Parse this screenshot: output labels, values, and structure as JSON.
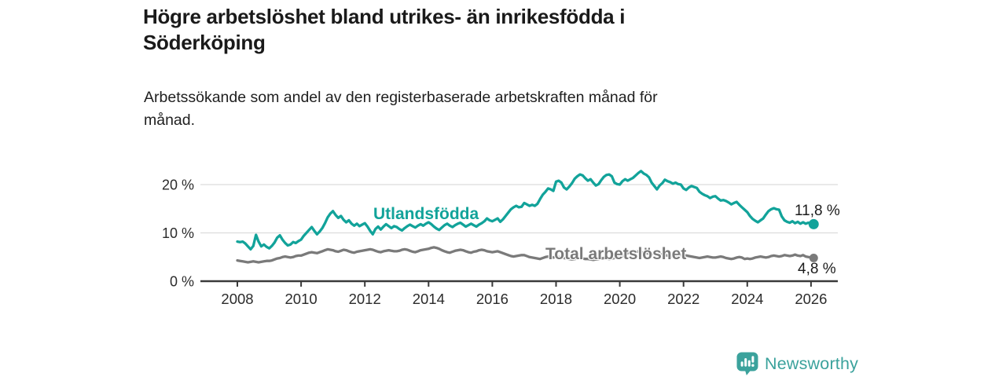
{
  "header": {
    "title_lines": [
      "Högre arbetslöshet bland utrikes- än inrikesfödda i",
      "Söderköping"
    ],
    "subtitle_lines": [
      "Arbetssökande som andel av den registerbaserade arbetskraften månad för",
      "månad."
    ]
  },
  "chart_data": {
    "type": "line",
    "title": "Högre arbetslöshet bland utrikes- än inrikesfödda i Söderköping",
    "subtitle": "Arbetssökande som andel av den registerbaserade arbetskraften månad för månad.",
    "xlabel": "",
    "ylabel": "",
    "unit": "%",
    "grid": "horizontal",
    "legend_position": "inline-labels",
    "x_ticks": [
      2008,
      2010,
      2012,
      2014,
      2016,
      2018,
      2020,
      2022,
      2024,
      2026
    ],
    "y_ticks": [
      0,
      10,
      20
    ],
    "y_tick_suffix": " %",
    "ylim": [
      0,
      24
    ],
    "xlim": [
      2007.7,
      2026.8
    ],
    "x_start_year": 2008,
    "x_interval": "monthly",
    "series": [
      {
        "name": "Utlandsfödda",
        "color": "#12a39a",
        "end_label": "11,8 %",
        "end_value": 11.8,
        "end_dot_radius": 6.5,
        "values": [
          8.2,
          8.1,
          8.2,
          7.8,
          7.2,
          6.6,
          7.3,
          9.6,
          8.2,
          7.2,
          7.6,
          7.1,
          6.8,
          7.3,
          8.0,
          9.0,
          9.5,
          8.6,
          7.9,
          7.4,
          7.6,
          8.1,
          7.9,
          8.3,
          8.6,
          9.4,
          10.0,
          10.6,
          11.2,
          10.4,
          9.7,
          10.3,
          11.0,
          12.0,
          13.2,
          14.0,
          14.5,
          13.7,
          13.1,
          13.5,
          12.7,
          12.2,
          12.6,
          11.9,
          11.5,
          11.9,
          11.4,
          11.7,
          12.0,
          11.3,
          10.4,
          9.7,
          10.8,
          11.3,
          10.7,
          11.3,
          11.8,
          11.4,
          11.0,
          11.4,
          11.2,
          10.8,
          10.5,
          11.0,
          11.4,
          11.7,
          11.4,
          11.1,
          11.5,
          11.8,
          11.5,
          11.9,
          12.2,
          11.8,
          11.3,
          10.9,
          10.6,
          11.1,
          11.6,
          11.9,
          11.5,
          11.2,
          11.6,
          11.9,
          12.1,
          11.7,
          11.3,
          11.6,
          11.9,
          11.6,
          11.3,
          11.7,
          12.0,
          12.4,
          13.0,
          12.6,
          12.4,
          12.7,
          13.0,
          12.3,
          12.8,
          13.5,
          14.2,
          14.9,
          15.3,
          15.6,
          15.3,
          15.4,
          16.2,
          15.9,
          15.6,
          15.8,
          15.6,
          16.0,
          17.0,
          17.9,
          18.5,
          19.2,
          19.0,
          18.7,
          20.6,
          20.8,
          20.4,
          19.4,
          19.0,
          19.6,
          20.3,
          21.2,
          21.7,
          22.1,
          21.9,
          21.3,
          20.8,
          21.1,
          20.4,
          19.8,
          20.1,
          20.9,
          21.6,
          22.0,
          22.1,
          21.7,
          20.4,
          20.1,
          20.0,
          20.7,
          21.1,
          20.8,
          21.1,
          21.4,
          21.9,
          22.4,
          22.8,
          22.3,
          22.0,
          21.5,
          20.4,
          19.7,
          19.0,
          19.8,
          20.3,
          21.0,
          20.7,
          20.5,
          20.2,
          20.4,
          20.1,
          20.0,
          19.2,
          18.9,
          19.4,
          19.7,
          19.5,
          19.3,
          18.5,
          18.1,
          17.8,
          17.6,
          17.2,
          17.5,
          17.6,
          17.1,
          16.7,
          16.8,
          16.6,
          16.3,
          15.9,
          16.2,
          16.4,
          15.8,
          15.3,
          14.8,
          14.3,
          13.5,
          12.9,
          12.5,
          12.2,
          12.6,
          13.0,
          13.8,
          14.5,
          14.9,
          15.1,
          14.9,
          14.8,
          13.4,
          12.6,
          12.3,
          12.1,
          12.4,
          12.0,
          12.3,
          11.9,
          12.2,
          11.9,
          12.1,
          11.9,
          11.8
        ]
      },
      {
        "name": "Total arbetslöshet",
        "color": "#7a7a7a",
        "end_label": "4,8 %",
        "end_value": 4.8,
        "end_dot_radius": 5.5,
        "values": [
          4.3,
          4.2,
          4.1,
          4.0,
          3.9,
          4.0,
          4.1,
          4.0,
          3.9,
          4.0,
          4.1,
          4.2,
          4.2,
          4.3,
          4.5,
          4.7,
          4.8,
          5.0,
          5.1,
          5.0,
          4.9,
          5.0,
          5.2,
          5.3,
          5.3,
          5.5,
          5.7,
          5.9,
          6.0,
          5.9,
          5.8,
          6.0,
          6.2,
          6.4,
          6.6,
          6.5,
          6.4,
          6.2,
          6.1,
          6.3,
          6.5,
          6.4,
          6.2,
          6.0,
          5.9,
          6.1,
          6.2,
          6.3,
          6.4,
          6.5,
          6.6,
          6.5,
          6.3,
          6.1,
          6.0,
          6.2,
          6.3,
          6.4,
          6.3,
          6.2,
          6.2,
          6.3,
          6.5,
          6.6,
          6.5,
          6.3,
          6.1,
          6.0,
          6.2,
          6.4,
          6.5,
          6.6,
          6.7,
          6.9,
          7.0,
          6.9,
          6.7,
          6.4,
          6.2,
          6.0,
          5.9,
          6.1,
          6.3,
          6.4,
          6.5,
          6.4,
          6.2,
          6.0,
          5.9,
          6.1,
          6.2,
          6.4,
          6.5,
          6.4,
          6.2,
          6.1,
          6.0,
          6.1,
          6.2,
          6.0,
          5.8,
          5.6,
          5.4,
          5.2,
          5.1,
          5.2,
          5.3,
          5.4,
          5.4,
          5.2,
          5.0,
          4.9,
          4.8,
          4.7,
          4.6,
          4.8,
          5.0,
          5.1,
          5.0,
          4.9,
          5.1,
          5.0,
          4.9,
          4.8,
          4.7,
          4.6,
          4.5,
          4.6,
          4.7,
          4.8,
          4.7,
          4.6,
          4.6,
          4.5,
          4.4,
          4.5,
          4.6,
          4.7,
          4.8,
          4.7,
          4.6,
          4.7,
          4.8,
          4.9,
          5.0,
          5.2,
          5.5,
          5.8,
          6.0,
          6.1,
          6.2,
          6.1,
          6.0,
          5.9,
          5.8,
          5.7,
          5.6,
          5.7,
          5.8,
          5.7,
          5.5,
          5.4,
          5.3,
          5.2,
          5.1,
          5.2,
          5.3,
          5.4,
          5.4,
          5.3,
          5.2,
          5.1,
          5.0,
          4.9,
          4.8,
          4.9,
          5.0,
          5.1,
          5.0,
          4.9,
          4.9,
          5.0,
          5.1,
          5.0,
          4.8,
          4.7,
          4.6,
          4.7,
          4.9,
          5.0,
          4.9,
          4.6,
          4.7,
          4.6,
          4.7,
          4.9,
          5.0,
          5.1,
          5.0,
          4.9,
          5.0,
          5.2,
          5.3,
          5.2,
          5.1,
          5.2,
          5.4,
          5.3,
          5.2,
          5.3,
          5.5,
          5.3,
          5.2,
          5.4,
          5.1,
          5.0,
          4.9,
          4.8
        ]
      }
    ]
  },
  "footer": {
    "brand": "Newsworthy",
    "brand_color": "#3ba29c",
    "logo_icon": "bar-chart-pin-icon"
  }
}
